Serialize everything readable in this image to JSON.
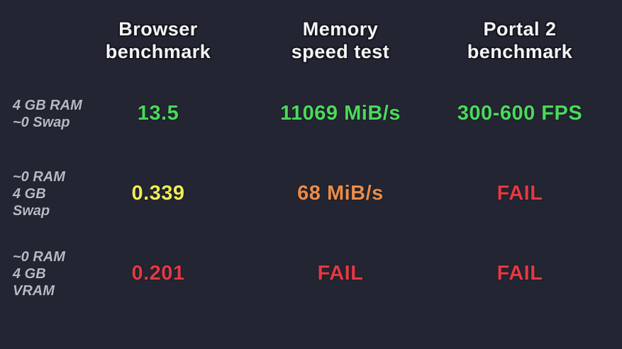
{
  "palette": {
    "background": "#232632",
    "header_text": "#f4f4f4",
    "label_text": "#b6bac4",
    "pass_green": "#4bd95c",
    "warn_yellow": "#efec55",
    "warn_orange": "#ea8b49",
    "fail_red": "#e13a43"
  },
  "headers": [
    {
      "line1": "Browser",
      "line2": "benchmark"
    },
    {
      "line1": "Memory",
      "line2": "speed test"
    },
    {
      "line1": "Portal 2",
      "line2": "benchmark"
    }
  ],
  "rows": [
    {
      "label_line1": "4 GB RAM",
      "label_line2": "~0 Swap",
      "cells": [
        {
          "text": "13.5",
          "color": "#4bd95c"
        },
        {
          "text": "11069 MiB/s",
          "color": "#4bd95c"
        },
        {
          "text": "300-600 FPS",
          "color": "#4bd95c"
        }
      ]
    },
    {
      "label_line1": "~0 RAM",
      "label_line2": "4 GB Swap",
      "cells": [
        {
          "text": "0.339",
          "color": "#efec55"
        },
        {
          "text": "68 MiB/s",
          "color": "#ea8b49"
        },
        {
          "text": "FAIL",
          "color": "#e13a43"
        }
      ]
    },
    {
      "label_line1": "~0 RAM",
      "label_line2": "4 GB VRAM",
      "cells": [
        {
          "text": "0.201",
          "color": "#e13a43"
        },
        {
          "text": "FAIL",
          "color": "#e13a43"
        },
        {
          "text": "FAIL",
          "color": "#e13a43"
        }
      ]
    }
  ],
  "chart_data": {
    "type": "table",
    "title": "",
    "columns": [
      "Browser benchmark",
      "Memory speed test",
      "Portal 2 benchmark"
    ],
    "row_labels": [
      "4 GB RAM ~0 Swap",
      "~0 RAM 4 GB Swap",
      "~0 RAM 4 GB VRAM"
    ],
    "rows": [
      [
        "13.5",
        "11069 MiB/s",
        "300-600 FPS"
      ],
      [
        "0.339",
        "68 MiB/s",
        "FAIL"
      ],
      [
        "0.201",
        "FAIL",
        "FAIL"
      ]
    ],
    "cell_status": [
      [
        "pass",
        "pass",
        "pass"
      ],
      [
        "warn",
        "warn",
        "fail"
      ],
      [
        "fail",
        "fail",
        "fail"
      ]
    ]
  }
}
